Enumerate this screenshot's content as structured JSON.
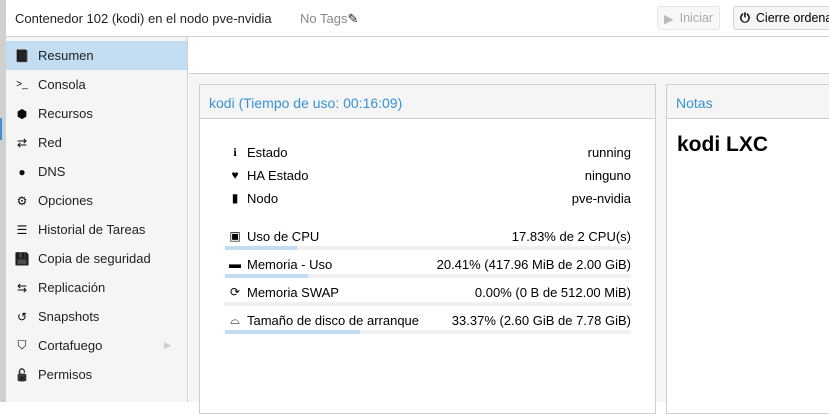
{
  "header": {
    "title": "Contenedor 102 (kodi) en el nodo pve-nvidia",
    "tags": "No Tags",
    "start_label": "Iniciar",
    "shutdown_label": "Cierre ordena"
  },
  "sidebar": {
    "items": [
      {
        "label": "Resumen",
        "icon": "book-icon",
        "active": true
      },
      {
        "label": "Consola",
        "icon": "terminal-icon"
      },
      {
        "label": "Recursos",
        "icon": "cube-icon"
      },
      {
        "label": "Red",
        "icon": "exchange-icon"
      },
      {
        "label": "DNS",
        "icon": "globe-icon"
      },
      {
        "label": "Opciones",
        "icon": "gear-icon"
      },
      {
        "label": "Historial de Tareas",
        "icon": "list-icon"
      },
      {
        "label": "Copia de seguridad",
        "icon": "floppy-icon"
      },
      {
        "label": "Replicación",
        "icon": "retweet-icon"
      },
      {
        "label": "Snapshots",
        "icon": "history-icon"
      },
      {
        "label": "Cortafuego",
        "icon": "shield-icon",
        "submenu": true
      },
      {
        "label": "Permisos",
        "icon": "unlock-icon"
      }
    ]
  },
  "status": {
    "title": "kodi (Tiempo de uso: 00:16:09)",
    "info": [
      {
        "label": "Estado",
        "value": "running"
      },
      {
        "label": "HA Estado",
        "value": "ninguno"
      },
      {
        "label": "Nodo",
        "value": "pve-nvidia"
      }
    ],
    "usage": [
      {
        "label": "Uso de CPU",
        "value": "17.83% de 2 CPU(s)",
        "percent": 17.83
      },
      {
        "label": "Memoria - Uso",
        "value": "20.41% (417.96 MiB de 2.00 GiB)",
        "percent": 20.41
      },
      {
        "label": "Memoria SWAP",
        "value": "0.00% (0 B de 512.00 MiB)",
        "percent": 0
      },
      {
        "label": "Tamaño de disco de arranque",
        "value": "33.37% (2.60 GiB de 7.78 GiB)",
        "percent": 33.37
      }
    ]
  },
  "notes": {
    "title": "Notas",
    "content": "kodi LXC"
  },
  "colors": {
    "accent": "#3892d4",
    "selected": "#c2ddf2"
  }
}
